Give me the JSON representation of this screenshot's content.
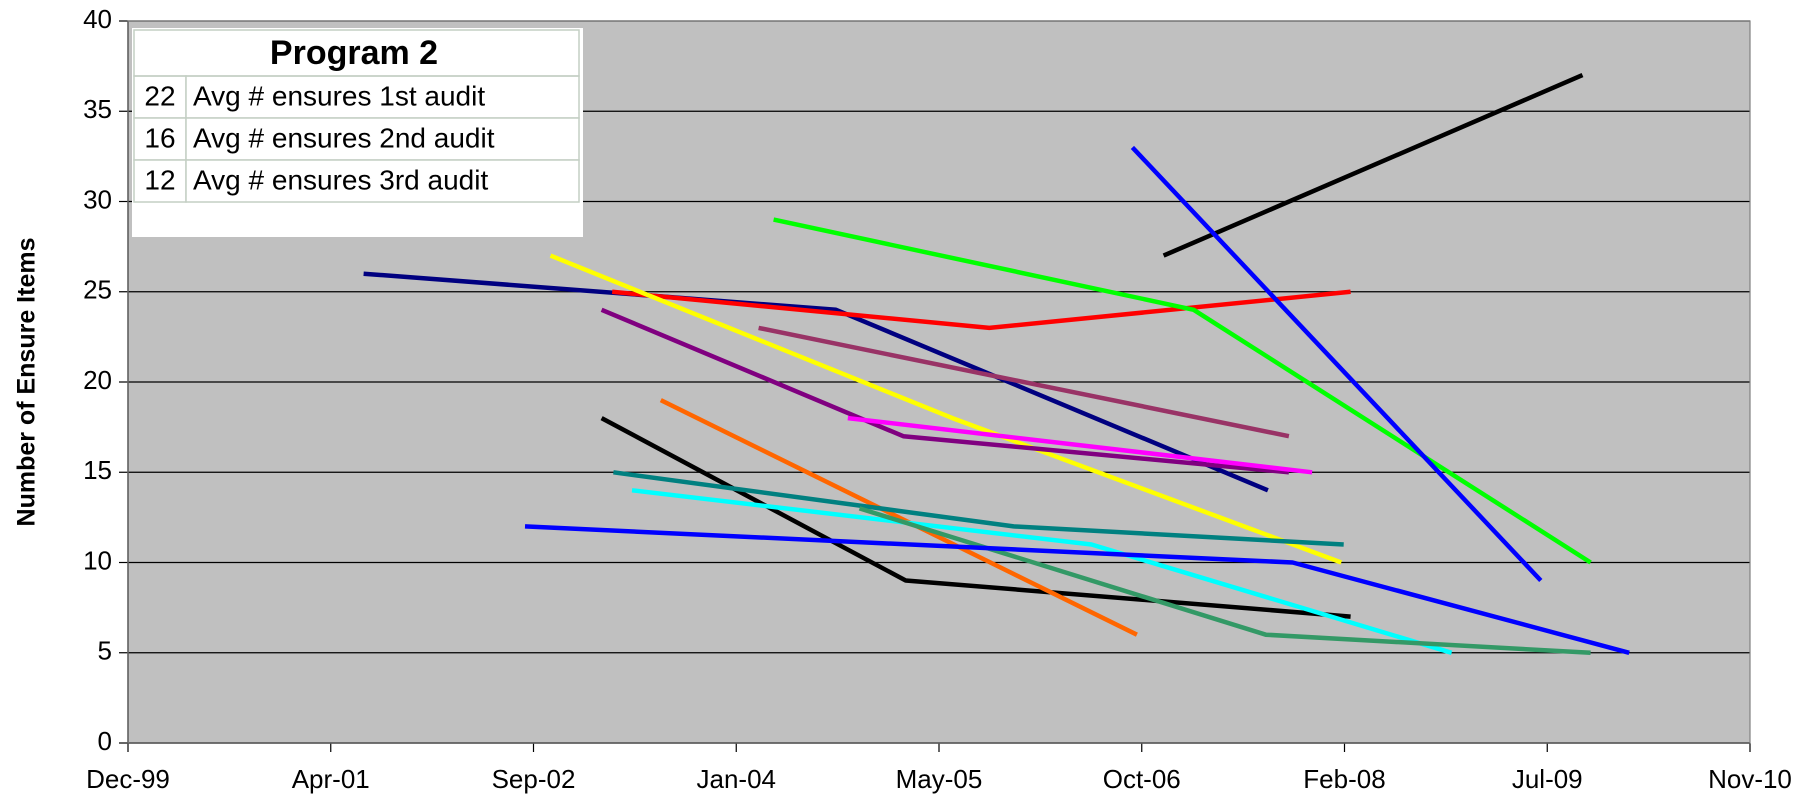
{
  "chart_data": {
    "type": "line",
    "y_label": "Number of Ensure Items",
    "xlim": [
      36500,
      40500
    ],
    "xticks": [
      {
        "value": 36500,
        "label": "Dec-99"
      },
      {
        "value": 37000,
        "label": "Apr-01"
      },
      {
        "value": 37500,
        "label": "Sep-02"
      },
      {
        "value": 38000,
        "label": "Jan-04"
      },
      {
        "value": 38500,
        "label": "May-05"
      },
      {
        "value": 39000,
        "label": "Oct-06"
      },
      {
        "value": 39500,
        "label": "Feb-08"
      },
      {
        "value": 40000,
        "label": "Jul-09"
      },
      {
        "value": 40500,
        "label": "Nov-10"
      }
    ],
    "ylim": [
      0,
      40
    ],
    "yticks": [
      0,
      5,
      10,
      15,
      20,
      25,
      30,
      35,
      40
    ],
    "grid": true,
    "plot_background": "#c0c0c0",
    "series": [
      {
        "color": "#000080",
        "x": [
          37081,
          38246,
          39311
        ],
        "values": [
          26,
          24,
          14
        ]
      },
      {
        "color": "#ff0000",
        "x": [
          37694,
          38624,
          39515
        ],
        "values": [
          25,
          23,
          25
        ]
      },
      {
        "color": "#ffff00",
        "x": [
          37542,
          38533,
          39492
        ],
        "values": [
          27,
          18,
          10
        ]
      },
      {
        "color": "#800080",
        "x": [
          37668,
          38412,
          39363
        ],
        "values": [
          24,
          17,
          15
        ]
      },
      {
        "color": "#993366",
        "x": [
          38055,
          39363
        ],
        "values": [
          23,
          17
        ]
      },
      {
        "color": "#ff00ff",
        "x": [
          38275,
          39420
        ],
        "values": [
          18,
          15
        ]
      },
      {
        "color": "#00ff00",
        "x": [
          38092,
          39128,
          40107
        ],
        "values": [
          29,
          24,
          10
        ]
      },
      {
        "color": "#000000",
        "x": [
          39054,
          40087
        ],
        "values": [
          27,
          37
        ]
      },
      {
        "color": "#0000ff",
        "x": [
          38977,
          39984
        ],
        "values": [
          33,
          9
        ]
      },
      {
        "color": "#000000",
        "x": [
          37668,
          38418,
          39515
        ],
        "values": [
          18,
          9,
          7
        ]
      },
      {
        "color": "#ff6600",
        "x": [
          37814,
          38988
        ],
        "values": [
          19,
          6
        ]
      },
      {
        "color": "#008080",
        "x": [
          37697,
          38684,
          39498
        ],
        "values": [
          15,
          12,
          11
        ]
      },
      {
        "color": "#00ffff",
        "x": [
          37743,
          38876,
          39764
        ],
        "values": [
          14,
          11,
          5
        ]
      },
      {
        "color": "#339966",
        "x": [
          38304,
          39306,
          40107
        ],
        "values": [
          13,
          6,
          5
        ]
      },
      {
        "color": "#0000ff",
        "x": [
          37479,
          39372,
          40202
        ],
        "values": [
          12,
          10,
          5
        ]
      }
    ],
    "table": {
      "title": "Program 2",
      "rows": [
        [
          22,
          "Avg # ensures 1st audit"
        ],
        [
          16,
          "Avg # ensures 2nd audit"
        ],
        [
          12,
          "Avg # ensures 3rd audit"
        ]
      ]
    }
  }
}
